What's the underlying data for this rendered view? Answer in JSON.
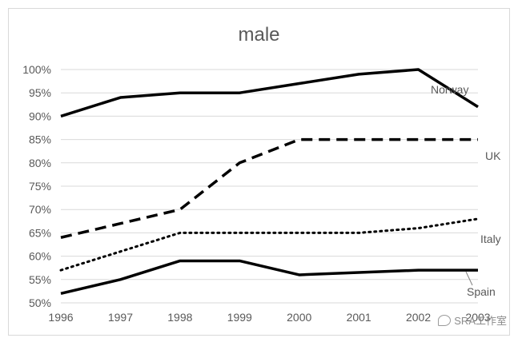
{
  "chart_data": {
    "type": "line",
    "title": "male",
    "xlabel": "",
    "ylabel": "",
    "x": [
      "1996",
      "1997",
      "1998",
      "1999",
      "2000",
      "2001",
      "2002",
      "2003"
    ],
    "y_ticks": [
      "50%",
      "55%",
      "60%",
      "65%",
      "70%",
      "75%",
      "80%",
      "85%",
      "90%",
      "95%",
      "100%"
    ],
    "ylim": [
      50,
      100
    ],
    "grid": true,
    "legend": "none (series labelled at line ends)",
    "series": [
      {
        "name": "Norway",
        "style": "solid",
        "values": [
          90,
          94,
          95,
          95,
          97,
          99,
          100,
          92
        ]
      },
      {
        "name": "UK",
        "style": "dashed",
        "values": [
          64,
          67,
          70,
          80,
          85,
          85,
          85,
          85
        ]
      },
      {
        "name": "Italy",
        "style": "dotted",
        "values": [
          57,
          61,
          65,
          65,
          65,
          65,
          66,
          68
        ]
      },
      {
        "name": "Spain",
        "style": "solid",
        "values": [
          52,
          55,
          59,
          59,
          56,
          56.5,
          57,
          57
        ]
      }
    ]
  },
  "watermark": "SRA工作室",
  "colors": {
    "line": "#000000",
    "grid": "#d9d9d9",
    "text": "#595959"
  }
}
